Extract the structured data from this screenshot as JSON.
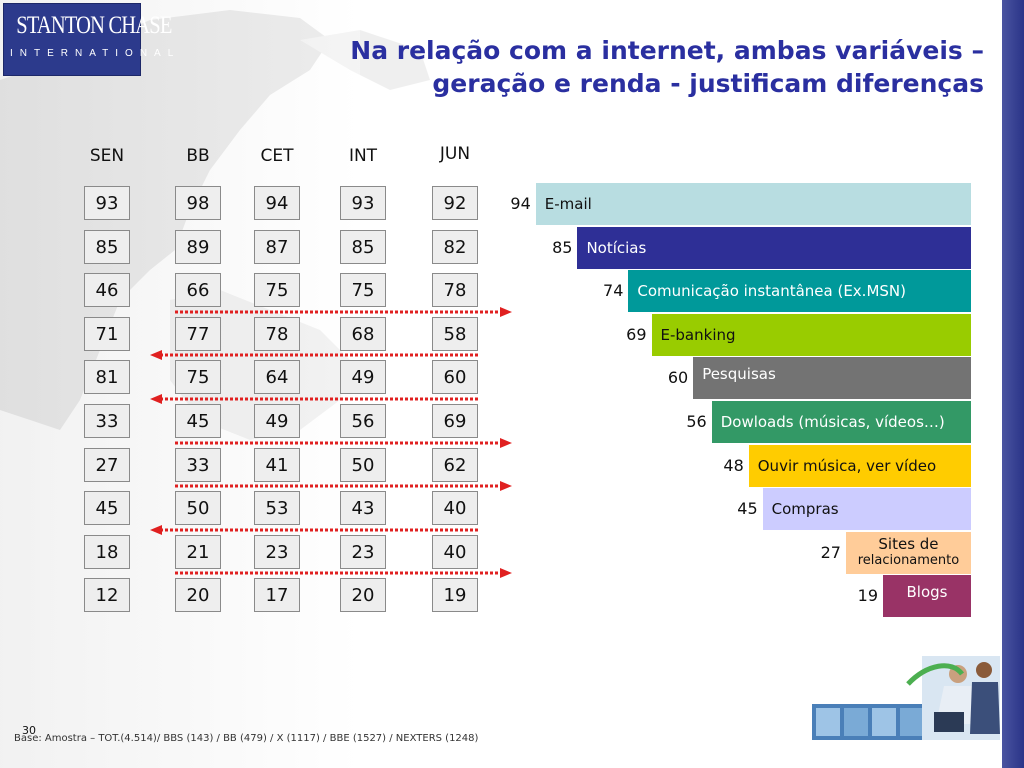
{
  "header": {
    "logo_line1": "STANTON CHASE",
    "logo_line2": "INTERNATIONAL",
    "title_line1": "Na relação com a internet, ambas variáveis –",
    "title_line2": "geração e renda - justificam diferenças"
  },
  "table": {
    "columns": [
      "SEN",
      "BB",
      "CET",
      "INT",
      "JUN"
    ],
    "rows": [
      [
        93,
        98,
        94,
        93,
        92
      ],
      [
        85,
        89,
        87,
        85,
        82
      ],
      [
        46,
        66,
        75,
        75,
        78
      ],
      [
        71,
        77,
        78,
        68,
        58
      ],
      [
        81,
        75,
        64,
        49,
        60
      ],
      [
        33,
        45,
        49,
        56,
        69
      ],
      [
        27,
        33,
        41,
        50,
        62
      ],
      [
        45,
        50,
        53,
        43,
        40
      ],
      [
        18,
        21,
        23,
        23,
        40
      ],
      [
        12,
        20,
        17,
        20,
        19
      ]
    ],
    "arrows": [
      {
        "after_row": 2,
        "direction": "right"
      },
      {
        "after_row": 3,
        "direction": "left"
      },
      {
        "after_row": 4,
        "direction": "left"
      },
      {
        "after_row": 5,
        "direction": "right"
      },
      {
        "after_row": 6,
        "direction": "right"
      },
      {
        "after_row": 7,
        "direction": "left"
      },
      {
        "after_row": 8,
        "direction": "right"
      }
    ],
    "arrow_color": "#e02020"
  },
  "chart_data": {
    "type": "bar",
    "categories": [
      "E-mail",
      "Notícias",
      "Comunicação instantânea (Ex.MSN)",
      "E-banking",
      "Pesquisas",
      "Dowloads (músicas, vídeos…)",
      "Ouvir música, ver vídeo",
      "Compras",
      "Sites de relacionamento",
      "Blogs"
    ],
    "values": [
      94,
      85,
      74,
      69,
      60,
      56,
      48,
      45,
      27,
      19
    ],
    "label_lines": [
      [
        "E-mail"
      ],
      [
        "Notícias"
      ],
      [
        "Comunicação instantânea (Ex.MSN)"
      ],
      [
        "E-banking"
      ],
      [
        "Pesquisas"
      ],
      [
        "Dowloads (músicas, vídeos…)"
      ],
      [
        "Ouvir música, ver vídeo"
      ],
      [
        "Compras"
      ],
      [
        "Sites de",
        "relacionamento"
      ],
      [
        "Blogs"
      ]
    ],
    "colors": [
      "#b8dde1",
      "#2e2f96",
      "#00999a",
      "#99cc00",
      "#737373",
      "#339966",
      "#ffcc00",
      "#ccccff",
      "#ffcc99",
      "#993366"
    ],
    "label_colors": [
      "#111111",
      "#ffffff",
      "#ffffff",
      "#111111",
      "#ffffff",
      "#ffffff",
      "#111111",
      "#111111",
      "#111111",
      "#ffffff"
    ],
    "orientation": "horizontal",
    "xlim": [
      0,
      100
    ],
    "title": "",
    "xlabel": "",
    "ylabel": ""
  },
  "footer": {
    "page_number": "30",
    "base_note": "Base: Amostra – TOT.(4.514)/ BBS (143) / BB (479) / X (1117) / BBE (1527) / NEXTERS (1248)"
  }
}
